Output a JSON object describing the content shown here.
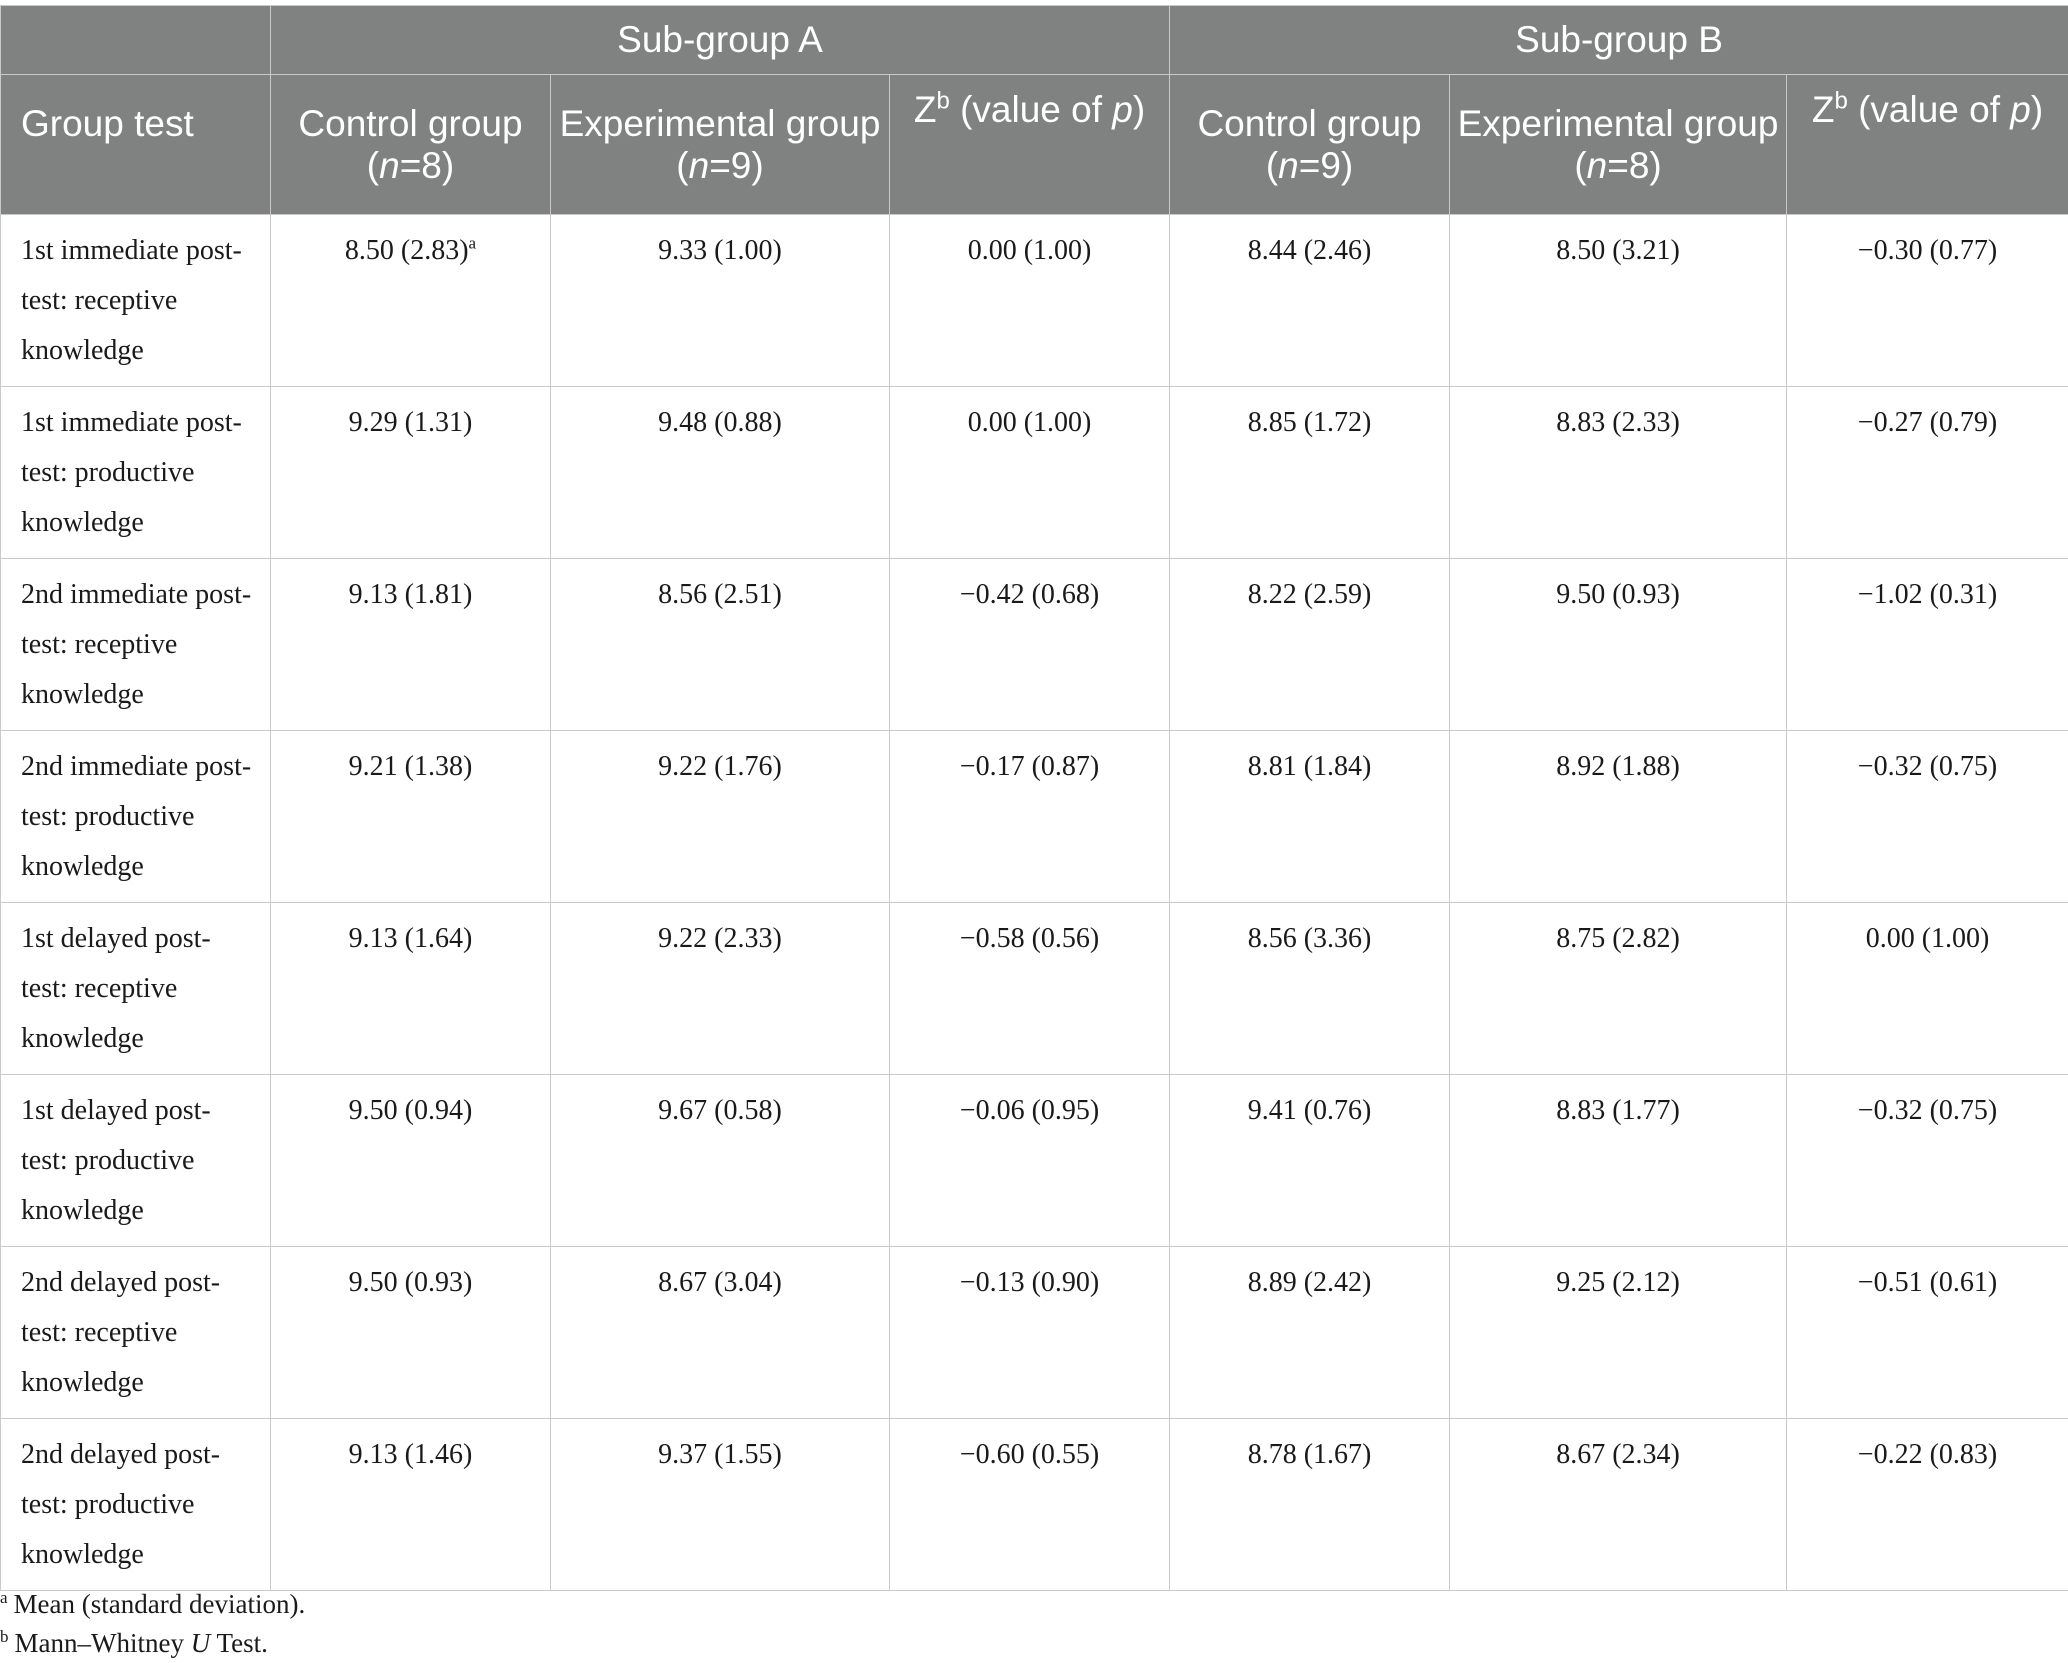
{
  "table": {
    "subgroups": [
      "Sub-group A",
      "Sub-group B"
    ],
    "header": {
      "group_test": "Group test",
      "control_group": "Control group",
      "experimental_group": "Experimental group",
      "z_letter": "Z",
      "z_sup": "b",
      "z_label": "(value of ",
      "p_letter": "p",
      "close_paren": ")",
      "n_open": "(",
      "n_letter": "n",
      "sub_a_control_n": "=8)",
      "sub_a_experimental_n": "=9)",
      "sub_b_control_n": "=9)",
      "sub_b_experimental_n": "=8)"
    },
    "rows": [
      {
        "label": "1st immediate post-test: receptive knowledge",
        "a_control": "8.50 (2.83)",
        "a_control_note": "a",
        "a_experimental": "9.33 (1.00)",
        "a_z": "0.00 (1.00)",
        "b_control": "8.44 (2.46)",
        "b_experimental": "8.50 (3.21)",
        "b_z": "−0.30 (0.77)"
      },
      {
        "label": "1st immediate post-test: productive knowledge",
        "a_control": "9.29 (1.31)",
        "a_experimental": "9.48 (0.88)",
        "a_z": "0.00 (1.00)",
        "b_control": "8.85 (1.72)",
        "b_experimental": "8.83 (2.33)",
        "b_z": "−0.27 (0.79)"
      },
      {
        "label": "2nd immediate post-test: receptive knowledge",
        "a_control": "9.13 (1.81)",
        "a_experimental": "8.56 (2.51)",
        "a_z": "−0.42 (0.68)",
        "b_control": "8.22 (2.59)",
        "b_experimental": "9.50 (0.93)",
        "b_z": "−1.02 (0.31)"
      },
      {
        "label": "2nd immediate post-test: productive knowledge",
        "a_control": "9.21 (1.38)",
        "a_experimental": "9.22 (1.76)",
        "a_z": "−0.17 (0.87)",
        "b_control": "8.81 (1.84)",
        "b_experimental": "8.92 (1.88)",
        "b_z": "−0.32 (0.75)"
      },
      {
        "label": "1st delayed post-test: receptive knowledge",
        "a_control": "9.13 (1.64)",
        "a_experimental": "9.22 (2.33)",
        "a_z": "−0.58 (0.56)",
        "b_control": "8.56 (3.36)",
        "b_experimental": "8.75 (2.82)",
        "b_z": "0.00 (1.00)"
      },
      {
        "label": "1st delayed post-test: productive knowledge",
        "a_control": "9.50 (0.94)",
        "a_experimental": "9.67 (0.58)",
        "a_z": "−0.06 (0.95)",
        "b_control": "9.41 (0.76)",
        "b_experimental": "8.83 (1.77)",
        "b_z": "−0.32 (0.75)"
      },
      {
        "label": "2nd delayed post-test: receptive knowledge",
        "a_control": "9.50 (0.93)",
        "a_experimental": "8.67 (3.04)",
        "a_z": "−0.13 (0.90)",
        "b_control": "8.89 (2.42)",
        "b_experimental": "9.25 (2.12)",
        "b_z": "−0.51 (0.61)"
      },
      {
        "label": "2nd delayed post-test: productive knowledge",
        "a_control": "9.13 (1.46)",
        "a_experimental": "9.37 (1.55)",
        "a_z": "−0.60 (0.55)",
        "b_control": "8.78 (1.67)",
        "b_experimental": "8.67 (2.34)",
        "b_z": "−0.22 (0.83)"
      }
    ]
  },
  "footnotes": {
    "a_mark": "a",
    "a_text": "Mean (standard deviation).",
    "b_mark": "b",
    "b_text_1": "Mann–Whitney ",
    "b_text_u": "U",
    "b_text_2": " Test."
  }
}
